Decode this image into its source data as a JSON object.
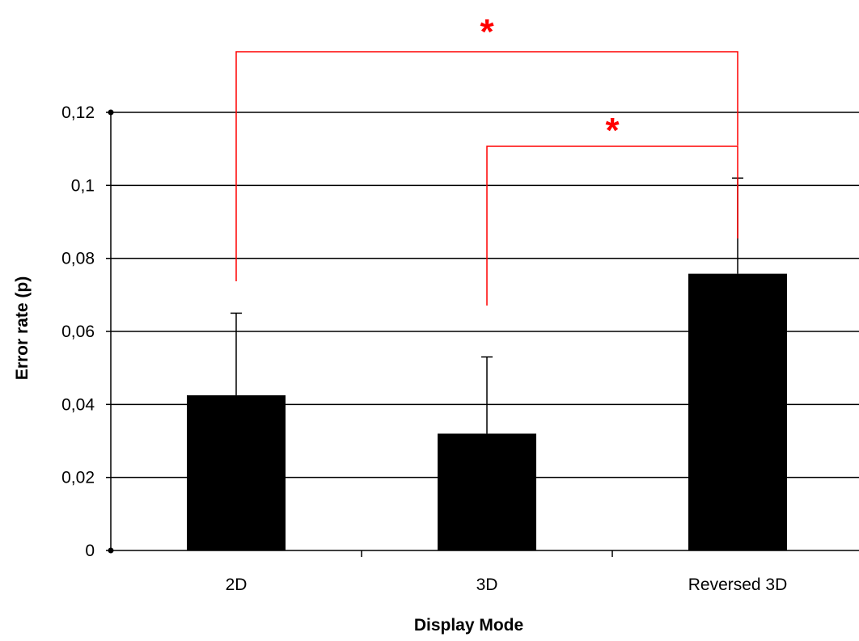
{
  "chart_data": {
    "type": "bar",
    "title": "",
    "xlabel": "Display Mode",
    "ylabel": "Error rate (p)",
    "categories": [
      "2D",
      "3D",
      "Reversed 3D"
    ],
    "values": [
      0.0425,
      0.032,
      0.0758
    ],
    "error_upper": [
      0.065,
      0.053,
      0.102
    ],
    "ylim": [
      0,
      0.12
    ],
    "yticks": [
      "0",
      "0,02",
      "0,04",
      "0,06",
      "0,08",
      "0,1",
      "0,12"
    ],
    "grid": true,
    "bar_color": "#000000",
    "significance": [
      {
        "from": "2D",
        "to": "Reversed 3D",
        "label": "*"
      },
      {
        "from": "3D",
        "to": "Reversed 3D",
        "label": "*"
      }
    ],
    "annotation_color": "#ff0000"
  }
}
